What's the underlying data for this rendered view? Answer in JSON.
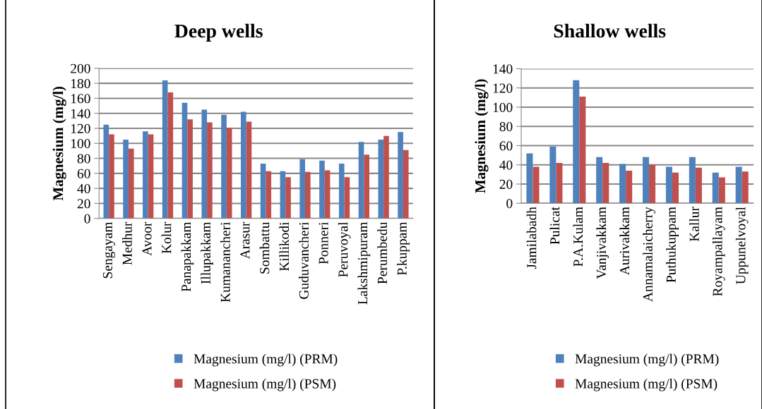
{
  "chart_data": [
    {
      "type": "bar",
      "title": "Deep wells",
      "ylabel": "Magnesium (mg/l)",
      "categories": [
        "Sengayam",
        "Medhur",
        "Avoor",
        "Kolur",
        "Panapakkam",
        "Illupakkam",
        "Kumanancheri",
        "Arasur",
        "Sombattu",
        "Killikodi",
        "Guduvancheri",
        "Ponneri",
        "Peruvoyal",
        "Lakshmipuram",
        "Perumbedu",
        "P.kuppam"
      ],
      "series": [
        {
          "name": "Magnesium (mg/l) (PRM)",
          "color": "#4f81bd",
          "values": [
            125,
            105,
            116,
            184,
            154,
            145,
            138,
            142,
            73,
            63,
            79,
            77,
            73,
            102,
            105,
            115
          ]
        },
        {
          "name": "Magnesium (mg/l) (PSM)",
          "color": "#c0504d",
          "values": [
            112,
            93,
            112,
            168,
            132,
            128,
            121,
            129,
            63,
            55,
            62,
            64,
            55,
            85,
            110,
            91
          ]
        }
      ],
      "ylim": [
        0,
        200
      ],
      "yticks": [
        0,
        20,
        40,
        60,
        80,
        100,
        120,
        140,
        160,
        180,
        200
      ],
      "grid": "y",
      "legend": "bottom"
    },
    {
      "type": "bar",
      "title": "Shallow wells",
      "ylabel": "Magnesium (mg/l)",
      "categories": [
        "Jamilabadh",
        "Pulicat",
        "P.A.Kulam",
        "Vanjivakkam",
        "Aurivakkam",
        "Annamalaicherry",
        "Puthukuppam",
        "Kallur",
        "Royampallayam",
        "Uppunelvoyal"
      ],
      "series": [
        {
          "name": "Magnesium (mg/l) (PRM)",
          "color": "#4f81bd",
          "values": [
            52,
            59,
            128,
            48,
            41,
            48,
            38,
            48,
            32,
            38
          ]
        },
        {
          "name": "Magnesium (mg/l) (PSM)",
          "color": "#c0504d",
          "values": [
            38,
            42,
            111,
            42,
            34,
            40,
            32,
            37,
            27,
            33
          ]
        }
      ],
      "ylim": [
        0,
        140
      ],
      "yticks": [
        0,
        20,
        40,
        60,
        80,
        100,
        120,
        140
      ],
      "grid": "y",
      "legend": "bottom"
    }
  ]
}
